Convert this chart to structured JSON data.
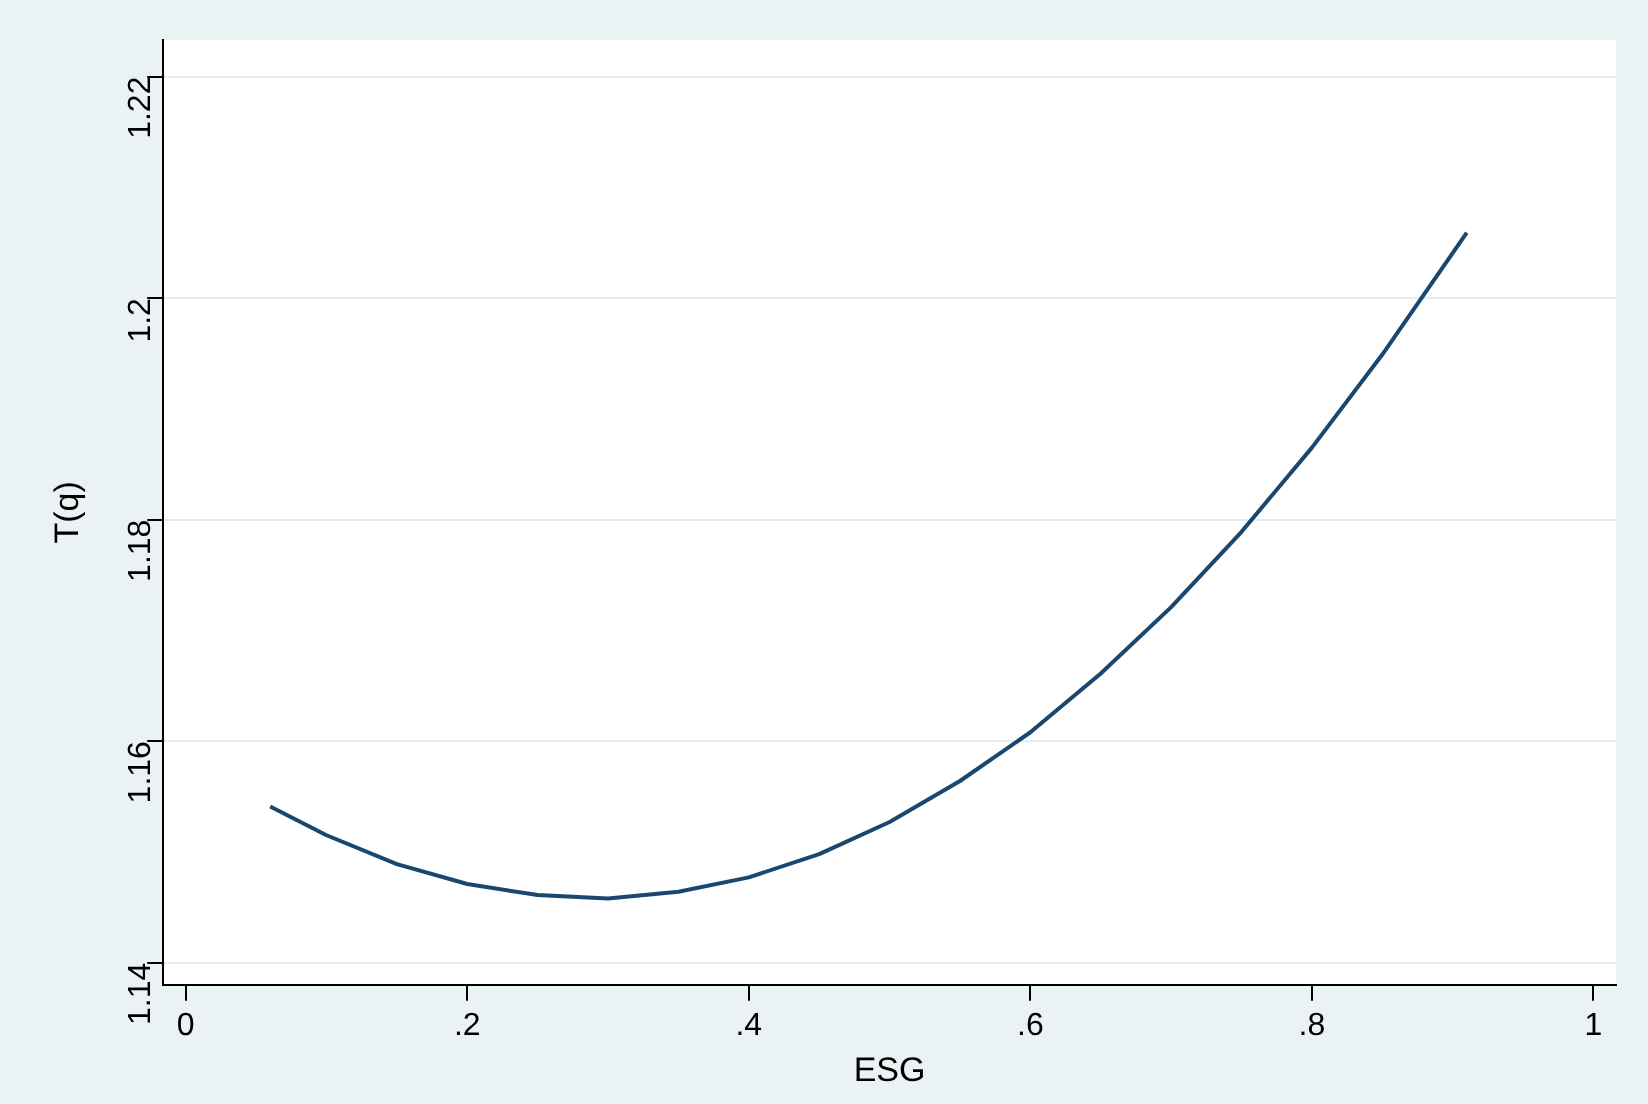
{
  "chart_data": {
    "type": "line",
    "xlabel": "ESG",
    "ylabel": "T(q)",
    "x": [
      0.06,
      0.1,
      0.15,
      0.2,
      0.25,
      0.3,
      0.35,
      0.4,
      0.45,
      0.5,
      0.55,
      0.6,
      0.65,
      0.7,
      0.75,
      0.8,
      0.85,
      0.91
    ],
    "series": [
      {
        "color": "#1a476f",
        "values": [
          1.1541,
          1.1515,
          1.1489,
          1.1471,
          1.1461,
          1.1458,
          1.1464,
          1.1477,
          1.1498,
          1.1527,
          1.1564,
          1.1608,
          1.1661,
          1.1721,
          1.1789,
          1.1865,
          1.1949,
          1.2059
        ]
      }
    ],
    "xlim": [
      -0.016,
      1.016
    ],
    "xticks": [
      {
        "value": 0,
        "label": "0"
      },
      {
        "value": 0.2,
        "label": ".2"
      },
      {
        "value": 0.4,
        "label": ".4"
      },
      {
        "value": 0.6,
        "label": ".6"
      },
      {
        "value": 0.8,
        "label": ".8"
      },
      {
        "value": 1,
        "label": "1"
      }
    ],
    "ylim": [
      1.138,
      1.2233
    ],
    "yticks": [
      1.14,
      1.16,
      1.18,
      1.2,
      1.22
    ],
    "grid": "y",
    "marker": "none",
    "line_style": "solid",
    "legend": false
  }
}
